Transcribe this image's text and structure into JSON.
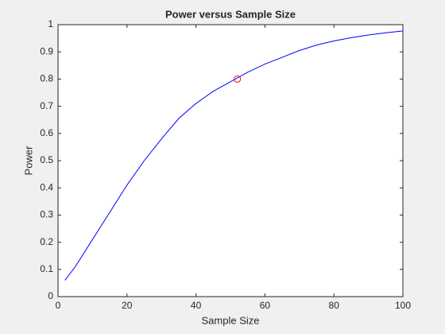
{
  "chart_data": {
    "type": "line",
    "title": "Power versus Sample Size",
    "xlabel": "Sample Size",
    "ylabel": "Power",
    "series": [
      {
        "color": "#0000ff",
        "marker": "none",
        "x": [
          2,
          5,
          10,
          15,
          20,
          25,
          30,
          35,
          40,
          45,
          50,
          55,
          60,
          65,
          70,
          75,
          80,
          85,
          90,
          95,
          100
        ],
        "values": [
          0.06,
          0.11,
          0.21,
          0.31,
          0.41,
          0.5,
          0.58,
          0.655,
          0.71,
          0.755,
          0.79,
          0.825,
          0.855,
          0.88,
          0.905,
          0.925,
          0.94,
          0.952,
          0.962,
          0.97,
          0.977
        ]
      },
      {
        "color": "#ff0000",
        "marker": "circle",
        "x": [
          52
        ],
        "values": [
          0.8
        ]
      }
    ],
    "xlim": [
      0,
      100
    ],
    "xticks": [
      0,
      20,
      40,
      60,
      80,
      100
    ],
    "ylim": [
      0,
      1
    ],
    "yticks": [
      0,
      0.1,
      0.2,
      0.3,
      0.4,
      0.5,
      0.6,
      0.7,
      0.8,
      0.9,
      1
    ],
    "grid": false
  }
}
